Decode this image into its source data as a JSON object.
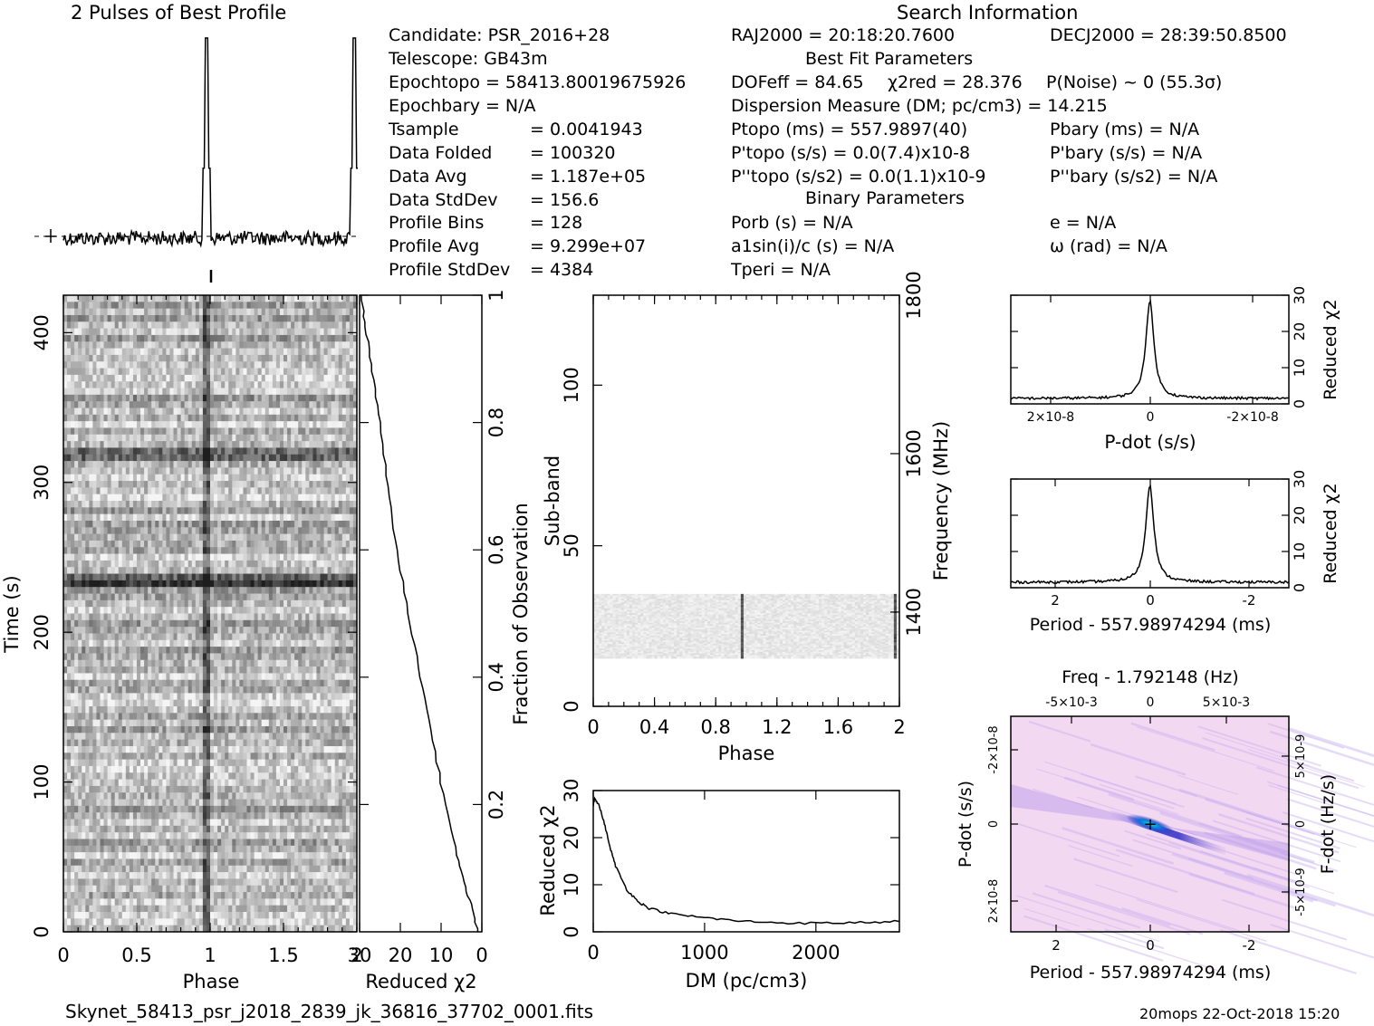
{
  "header": {
    "profile_title": "2 Pulses of Best Profile",
    "search_title": "Search Information",
    "best_fit_title": "Best Fit Parameters",
    "binary_title": "Binary Parameters"
  },
  "left_info": [
    {
      "label": "Candidate:  PSR_2016+28",
      "value": ""
    },
    {
      "label": "Telescope:  GB43m",
      "value": ""
    },
    {
      "label": "Epochtopo = 58413.80019675926",
      "value": ""
    },
    {
      "label": "Epochbary = N/A",
      "value": ""
    },
    {
      "label": "Tsample",
      "value": "=   0.0041943"
    },
    {
      "label": "Data Folded",
      "value": "=   100320"
    },
    {
      "label": "Data Avg",
      "value": "=   1.187e+05"
    },
    {
      "label": "Data StdDev",
      "value": "=   156.6"
    },
    {
      "label": "Profile Bins",
      "value": "=   128"
    },
    {
      "label": "Profile Avg",
      "value": "=   9.299e+07"
    },
    {
      "label": "Profile StdDev",
      "value": "=   4384"
    }
  ],
  "search_info": {
    "ra": "RAJ2000 = 20:18:20.7600",
    "dec": "DECJ2000 = 28:39:50.8500",
    "dof": "DOFeff = 84.65",
    "chi2": "χ2red = 28.376",
    "pnoise": "P(Noise) ~ 0    (55.3σ)",
    "dm": "Dispersion Measure (DM; pc/cm3) = 14.215",
    "ptopo": "Ptopo (ms) =  557.9897(40)",
    "pbary": "Pbary (ms) = N/A",
    "pdtopo": "P'topo (s/s) = 0.0(7.4)x10-8",
    "pdbary": "P'bary (s/s) = N/A",
    "pddtopo": "P''topo (s/s2) = 0.0(1.1)x10-9",
    "pddbary": "P''bary (s/s2) = N/A",
    "porb": "Porb (s) = N/A",
    "a1sini": "a1sin(i)/c (s) = N/A",
    "tperi": "Tperi = N/A",
    "ecc": "e = N/A",
    "omega": "ω (rad) = N/A"
  },
  "footer": {
    "filename": "Skynet_58413_psr_j2018_2839_jk_36816_37702_0001.fits",
    "stamp": "20mops 22-Oct-2018 15:20"
  },
  "chart_data": [
    {
      "id": "profile",
      "type": "line",
      "title": "2 Pulses of Best Profile",
      "x": "phase 0-2 (256 bins)",
      "peaks_at_phase": [
        0.97,
        1.97
      ],
      "peak_relative_height": 1.0,
      "baseline_noise": "low"
    },
    {
      "id": "time_phase",
      "type": "heatmap",
      "xlabel": "Phase",
      "ylabel": "Time (s)",
      "xlim": [
        0,
        2
      ],
      "ylim": [
        0,
        425
      ],
      "xticks": [
        "0",
        "0.5",
        "1",
        "1.5",
        "2"
      ],
      "yticks": [
        "0",
        "100",
        "200",
        "300",
        "400"
      ],
      "pulse_phase": 0.97,
      "dark_rows_s": [
        235,
        320
      ]
    },
    {
      "id": "reduced_chi2_time",
      "type": "line",
      "xlabel": "Reduced χ2",
      "ylabel": "Fraction of Observation",
      "xlim": [
        30,
        0
      ],
      "ylim": [
        0,
        1
      ],
      "xticks": [
        "30",
        "20",
        "10",
        "0"
      ],
      "yticks": [
        "0.2",
        "0.4",
        "0.6",
        "0.8",
        "1"
      ],
      "points": [
        [
          1,
          0
        ],
        [
          2,
          0.03
        ],
        [
          4,
          0.07
        ],
        [
          6,
          0.12
        ],
        [
          9,
          0.2
        ],
        [
          12,
          0.3
        ],
        [
          15,
          0.4
        ],
        [
          18,
          0.5
        ],
        [
          21,
          0.6
        ],
        [
          23,
          0.7
        ],
        [
          25,
          0.8
        ],
        [
          27,
          0.88
        ],
        [
          28.5,
          0.95
        ],
        [
          29.5,
          1.0
        ]
      ]
    },
    {
      "id": "subband_phase",
      "type": "heatmap",
      "xlabel": "Phase",
      "ylabel": "Sub-band",
      "y2label": "Frequency (MHz)",
      "xlim": [
        0,
        2
      ],
      "ylim": [
        0,
        128
      ],
      "xticks": [
        "0",
        "0.4",
        "0.8",
        "1.2",
        "1.6",
        "2"
      ],
      "yticks": [
        "0",
        "50",
        "100"
      ],
      "y2ticks": [
        "1400",
        "1600",
        "1800"
      ],
      "data_band_subbands": [
        15,
        35
      ],
      "pulse_phases": [
        0.97,
        1.97
      ]
    },
    {
      "id": "dm_chi2",
      "type": "line",
      "xlabel": "DM (pc/cm3)",
      "ylabel": "Reduced χ2",
      "xlim": [
        0,
        2750
      ],
      "ylim": [
        0,
        30
      ],
      "xticks": [
        "0",
        "1000",
        "2000"
      ],
      "yticks": [
        "0",
        "10",
        "20",
        "30"
      ],
      "points": [
        [
          0,
          27
        ],
        [
          14,
          28.4
        ],
        [
          50,
          27
        ],
        [
          100,
          23
        ],
        [
          150,
          18
        ],
        [
          200,
          14
        ],
        [
          300,
          9
        ],
        [
          400,
          6.5
        ],
        [
          500,
          5
        ],
        [
          700,
          3.8
        ],
        [
          1000,
          3
        ],
        [
          1300,
          2.3
        ],
        [
          1600,
          2
        ],
        [
          2000,
          1.8
        ],
        [
          2400,
          2
        ],
        [
          2750,
          2.2
        ]
      ]
    },
    {
      "id": "pdot_chi2",
      "type": "line",
      "xlabel": "P-dot (s/s)",
      "ylabel": "Reduced χ2",
      "xlim": [
        2.9e-08,
        -2.9e-08
      ],
      "ylim": [
        0,
        30
      ],
      "xticks": [
        "2×10-8",
        "0",
        "-2×10-8"
      ],
      "yticks": [
        "0",
        "10",
        "20",
        "30"
      ],
      "peak": [
        0,
        28.4
      ],
      "baseline": 1.5
    },
    {
      "id": "period_chi2",
      "type": "line",
      "xlabel": "Period - 557.98974294 (ms)",
      "ylabel": "Reduced χ2",
      "xlim": [
        3,
        -3
      ],
      "ylim": [
        0,
        30
      ],
      "xticks": [
        "2",
        "0",
        "-2"
      ],
      "yticks": [
        "0",
        "10",
        "20",
        "30"
      ],
      "peak": [
        0,
        28.4
      ],
      "baseline": 1.5
    },
    {
      "id": "period_pdot_plane",
      "type": "heatmap",
      "xlabel": "Period - 557.98974294 (ms)",
      "ylabel": "P-dot (s/s)",
      "top_label": "Freq - 1.792148 (Hz)",
      "right_label": "F-dot (Hz/s)",
      "xticks": [
        "2",
        "0",
        "-2"
      ],
      "yticks": [
        "2×10-8",
        "0",
        "-2×10-8"
      ],
      "top_ticks": [
        "-5×10-3",
        "0",
        "5×10-3"
      ],
      "right_ticks": [
        "-5×10-9",
        "0",
        "5×10-9"
      ],
      "best_marker": [
        0,
        0
      ],
      "colors": {
        "background": "#f3d8f2",
        "ridge": "#3030c8",
        "peak": "#00c8d0"
      }
    }
  ]
}
